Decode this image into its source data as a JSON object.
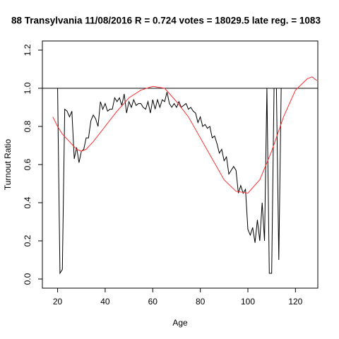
{
  "chart_data": {
    "type": "line",
    "title": "88 Transylvania 11/08/2016 R = 0.724 votes = 18029.5 late reg. = 1083",
    "x_label": "Age",
    "y_label": "Turnout Ratio",
    "xlim": [
      13.6,
      129.4
    ],
    "ylim": [
      -0.048,
      1.248
    ],
    "xticks": [
      20,
      40,
      60,
      80,
      100,
      120
    ],
    "yticks": [
      {
        "value": 0,
        "label": "0.0"
      },
      0.2,
      0.4,
      0.6,
      0.8,
      {
        "value": 1,
        "label": "1.0"
      },
      1.2
    ],
    "reference_line": 1,
    "reference_color": "#000000",
    "series": [
      {
        "color": "#000000",
        "x": [
          20,
          21,
          22,
          23,
          24,
          25,
          26,
          27,
          28,
          29,
          30,
          31,
          32,
          33,
          34,
          35,
          36,
          37,
          38,
          39,
          40,
          41,
          42,
          43,
          44,
          45,
          46,
          47,
          48,
          49,
          50,
          51,
          52,
          53,
          54,
          55,
          56,
          57,
          58,
          59,
          60,
          61,
          62,
          63,
          64,
          65,
          66,
          67,
          68,
          69,
          70,
          71,
          72,
          73,
          74,
          75,
          76,
          77,
          78,
          79,
          80,
          81,
          82,
          83,
          84,
          85,
          86,
          87,
          88,
          89,
          90,
          91,
          92,
          93,
          94,
          95,
          96,
          97,
          98,
          99,
          100,
          101,
          102,
          103,
          104,
          105,
          106,
          107,
          108,
          109,
          110,
          111,
          112,
          113,
          114
        ],
        "values": [
          1.0,
          0.03,
          0.05,
          0.89,
          0.88,
          0.85,
          0.88,
          0.63,
          0.69,
          0.61,
          0.67,
          0.68,
          0.74,
          0.74,
          0.83,
          0.86,
          0.84,
          0.8,
          0.93,
          0.89,
          0.92,
          0.88,
          0.89,
          0.89,
          0.95,
          0.93,
          0.95,
          0.91,
          0.97,
          0.87,
          0.93,
          0.9,
          0.94,
          0.91,
          0.92,
          0.92,
          0.9,
          0.89,
          0.93,
          0.87,
          0.94,
          0.89,
          0.94,
          0.9,
          0.94,
          0.93,
          0.98,
          0.92,
          0.9,
          0.92,
          0.9,
          0.93,
          0.9,
          0.91,
          0.92,
          0.89,
          0.9,
          0.88,
          0.87,
          0.82,
          0.85,
          0.8,
          0.81,
          0.79,
          0.8,
          0.74,
          0.75,
          0.71,
          0.66,
          0.68,
          0.62,
          0.64,
          0.55,
          0.57,
          0.59,
          0.57,
          0.45,
          0.49,
          0.45,
          0.47,
          0.26,
          0.23,
          0.27,
          0.19,
          0.31,
          0.2,
          0.4,
          0.2,
          1.0,
          0.03,
          0.03,
          1.0,
          1.0,
          0.1,
          1.0
        ]
      },
      {
        "color": "#ff3030",
        "x": [
          18,
          20,
          22,
          25,
          28,
          30,
          32,
          35,
          40,
          45,
          50,
          55,
          60,
          65,
          70,
          75,
          80,
          85,
          90,
          95,
          100,
          105,
          110,
          115,
          120,
          125,
          127,
          129
        ],
        "values": [
          0.85,
          0.8,
          0.76,
          0.72,
          0.68,
          0.67,
          0.68,
          0.72,
          0.8,
          0.88,
          0.95,
          0.99,
          1.01,
          1.0,
          0.93,
          0.85,
          0.74,
          0.63,
          0.52,
          0.46,
          0.45,
          0.52,
          0.67,
          0.85,
          0.99,
          1.05,
          1.06,
          1.04
        ]
      }
    ]
  }
}
